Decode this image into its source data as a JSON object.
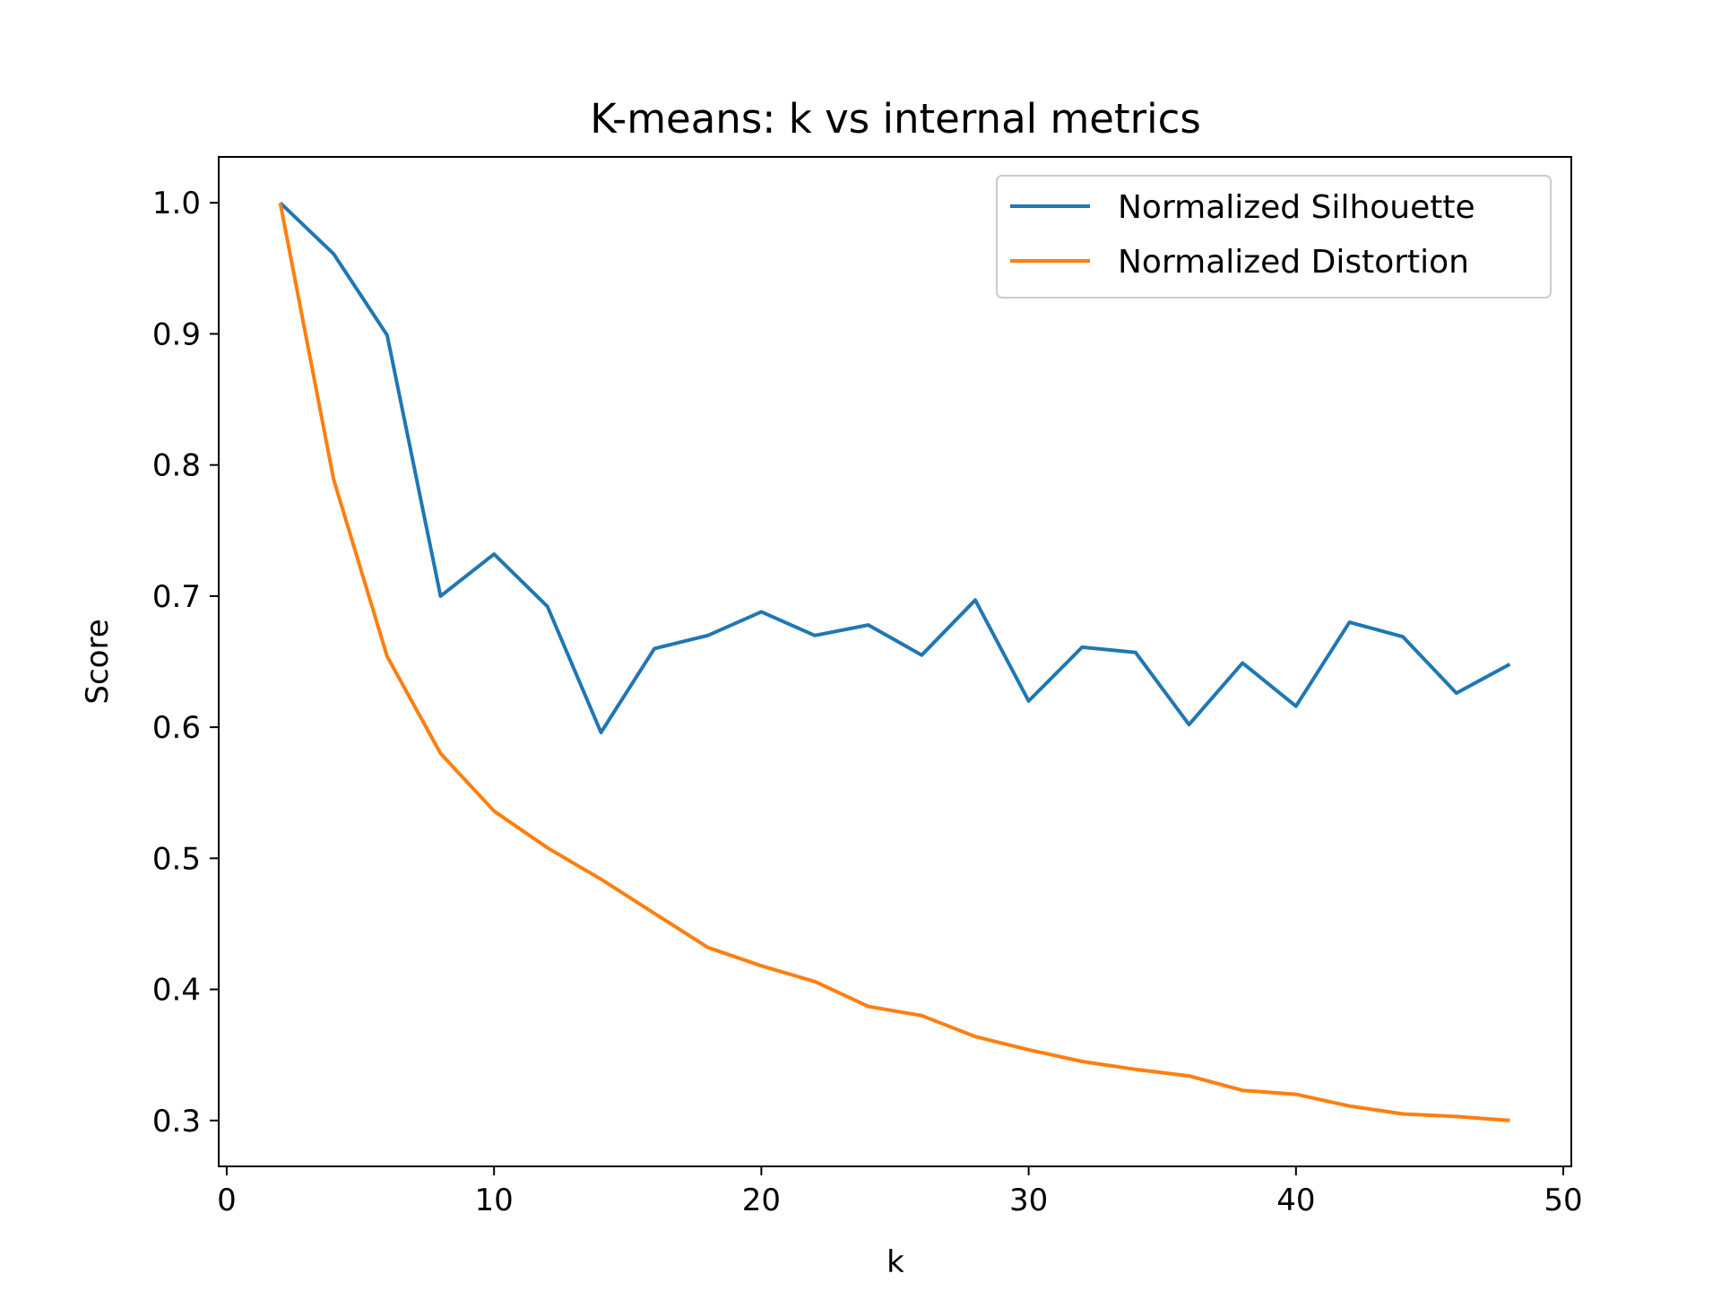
{
  "chart_data": {
    "type": "line",
    "title": "K-means: k vs internal metrics",
    "xlabel": "k",
    "ylabel": "Score",
    "xlim": [
      -0.3,
      50.3
    ],
    "ylim": [
      0.265,
      1.035
    ],
    "xticks": [
      0,
      10,
      20,
      30,
      40,
      50
    ],
    "xtick_labels": [
      "0",
      "10",
      "20",
      "30",
      "40",
      "50"
    ],
    "yticks": [
      0.3,
      0.4,
      0.5,
      0.6,
      0.7,
      0.8,
      0.9,
      1.0
    ],
    "ytick_labels": [
      "0.3",
      "0.4",
      "0.5",
      "0.6",
      "0.7",
      "0.8",
      "0.9",
      "1.0"
    ],
    "grid": false,
    "legend_position": "top-right",
    "x": [
      2,
      4,
      6,
      8,
      10,
      12,
      14,
      16,
      18,
      20,
      22,
      24,
      26,
      28,
      30,
      32,
      34,
      36,
      38,
      40,
      42,
      44,
      46,
      48
    ],
    "series": [
      {
        "name": "Normalized Silhouette",
        "color": "#1f77b4",
        "values": [
          1.0,
          0.961,
          0.899,
          0.7,
          0.732,
          0.692,
          0.596,
          0.66,
          0.67,
          0.688,
          0.67,
          0.678,
          0.655,
          0.697,
          0.62,
          0.661,
          0.657,
          0.602,
          0.649,
          0.616,
          0.68,
          0.669,
          0.626,
          0.648
        ]
      },
      {
        "name": "Normalized Distortion",
        "color": "#ff7f0e",
        "values": [
          1.0,
          0.789,
          0.654,
          0.58,
          0.536,
          0.508,
          0.484,
          0.458,
          0.432,
          0.418,
          0.406,
          0.387,
          0.38,
          0.364,
          0.354,
          0.345,
          0.339,
          0.334,
          0.323,
          0.32,
          0.311,
          0.305,
          0.303,
          0.3
        ]
      }
    ]
  }
}
